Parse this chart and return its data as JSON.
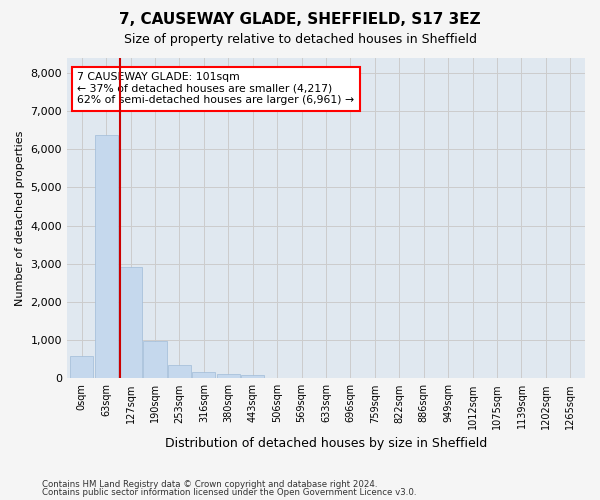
{
  "title": "7, CAUSEWAY GLADE, SHEFFIELD, S17 3EZ",
  "subtitle": "Size of property relative to detached houses in Sheffield",
  "xlabel": "Distribution of detached houses by size in Sheffield",
  "ylabel": "Number of detached properties",
  "bar_color": "#c5d8ed",
  "bar_edgecolor": "#a0bcd8",
  "vline_color": "#cc0000",
  "vline_x": 1.58,
  "annotation_text": "7 CAUSEWAY GLADE: 101sqm\n← 37% of detached houses are smaller (4,217)\n62% of semi-detached houses are larger (6,961) →",
  "bin_labels": [
    "0sqm",
    "63sqm",
    "127sqm",
    "190sqm",
    "253sqm",
    "316sqm",
    "380sqm",
    "443sqm",
    "506sqm",
    "569sqm",
    "633sqm",
    "696sqm",
    "759sqm",
    "822sqm",
    "886sqm",
    "949sqm",
    "1012sqm",
    "1075sqm",
    "1139sqm",
    "1202sqm",
    "1265sqm"
  ],
  "bar_heights": [
    580,
    6380,
    2920,
    980,
    360,
    170,
    105,
    85,
    0,
    0,
    0,
    0,
    0,
    0,
    0,
    0,
    0,
    0,
    0,
    0,
    0
  ],
  "ylim": [
    0,
    8400
  ],
  "yticks": [
    0,
    1000,
    2000,
    3000,
    4000,
    5000,
    6000,
    7000,
    8000
  ],
  "grid_color": "#cccccc",
  "bg_color": "#e0e8f0",
  "fig_color": "#f5f5f5",
  "footnote1": "Contains HM Land Registry data © Crown copyright and database right 2024.",
  "footnote2": "Contains public sector information licensed under the Open Government Licence v3.0."
}
